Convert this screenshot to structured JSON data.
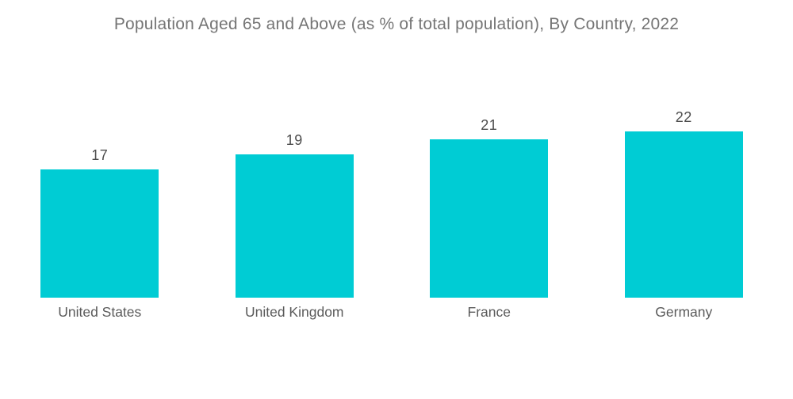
{
  "page": {
    "background": "#ffffff"
  },
  "chart_data": {
    "type": "bar",
    "title": "Population Aged 65 and Above (as % of total population), By Country, 2022",
    "categories": [
      "United States",
      "United Kingdom",
      "France",
      "Germany"
    ],
    "values": [
      17,
      19,
      21,
      22
    ],
    "value_labels": [
      "17",
      "19",
      "21",
      "22"
    ],
    "xlabel": "",
    "ylabel": "",
    "ylim": [
      0,
      22
    ],
    "grid": false,
    "legend": false,
    "colors": {
      "bar": "#00CCD4",
      "title_text": "#757575",
      "value_label_text": "#4d4d4d",
      "category_label_text": "#5b5b5b"
    }
  }
}
